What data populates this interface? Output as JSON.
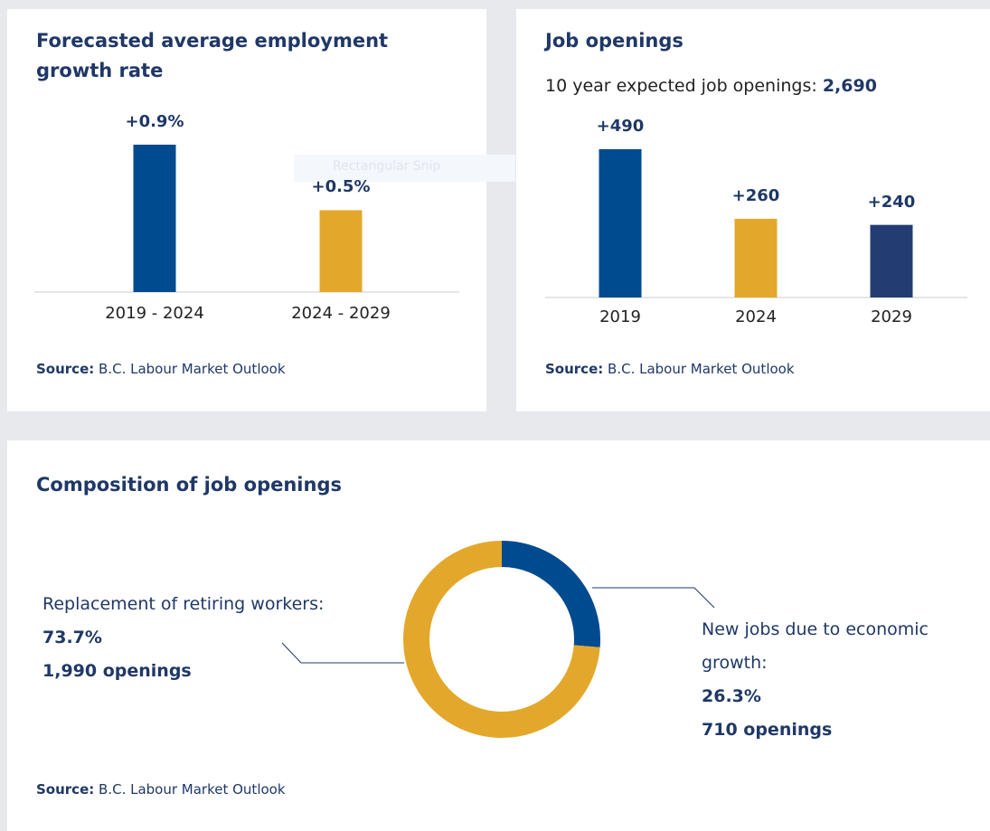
{
  "chart_data": [
    {
      "type": "bar",
      "title": "Forecasted average employment growth rate",
      "categories": [
        "2019 - 2024",
        "2024 - 2029"
      ],
      "values": [
        0.9,
        0.5
      ],
      "value_labels": [
        "+0.9%",
        "+0.5%"
      ],
      "colors": [
        "#004a8f",
        "#e3a82b"
      ],
      "source_label": "Source:",
      "source": "B.C. Labour Market Outlook"
    },
    {
      "type": "bar",
      "title": "Job openings",
      "subtitle": "10 year expected job openings:",
      "subtitle_value": "2,690",
      "categories": [
        "2019",
        "2024",
        "2029"
      ],
      "values": [
        490,
        260,
        240
      ],
      "value_labels": [
        "+490",
        "+260",
        "+240"
      ],
      "colors": [
        "#004a8f",
        "#e3a82b",
        "#233d73"
      ],
      "source_label": "Source:",
      "source": "B.C. Labour Market Outlook"
    },
    {
      "type": "pie",
      "title": "Composition of job openings",
      "categories": [
        "New jobs due to economic growth:",
        "Replacement of retiring workers:"
      ],
      "values": [
        26.3,
        73.7
      ],
      "value_labels": [
        "26.3%",
        "73.7%"
      ],
      "count_labels": [
        "710 openings",
        "1,990 openings"
      ],
      "colors": [
        "#004a8f",
        "#e3a82b"
      ],
      "source_label": "Source:",
      "source": "B.C. Labour Market Outlook"
    }
  ],
  "overlay_text": "Rectangular Snip"
}
